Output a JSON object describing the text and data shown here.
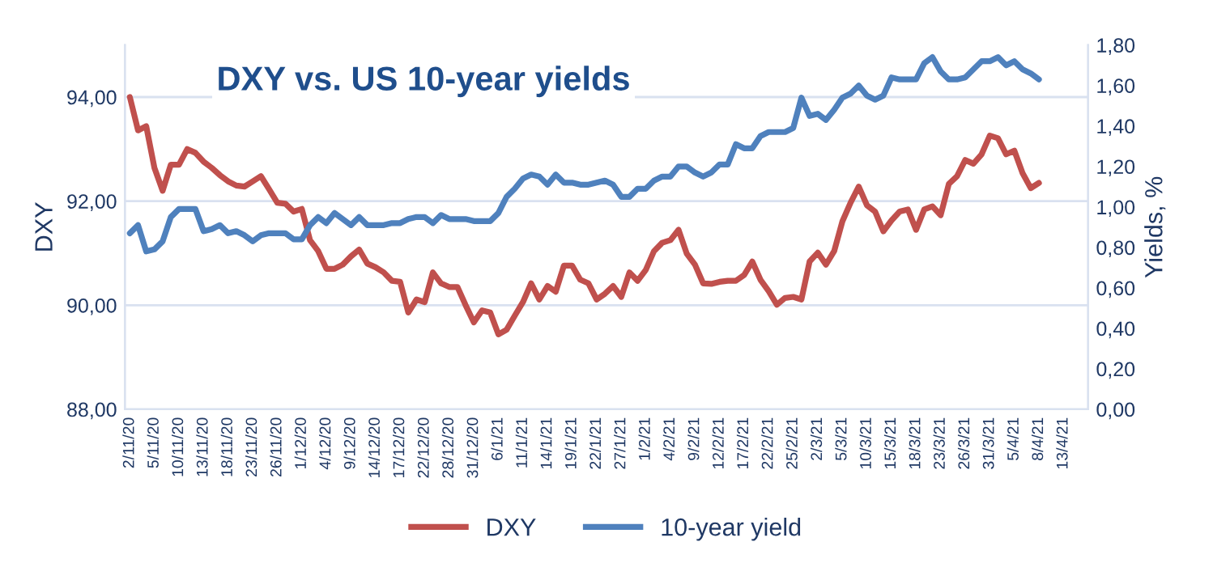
{
  "chart_data": {
    "type": "line",
    "title": "DXY vs. US 10-year yields",
    "ylabel": "DXY",
    "y2label": "Yields, %",
    "categories": [
      "2/11/20",
      null,
      null,
      "5/11/20",
      null,
      null,
      "10/11/20",
      null,
      null,
      "13/11/20",
      null,
      null,
      "18/11/20",
      null,
      null,
      "23/11/20",
      null,
      null,
      "26/11/20",
      null,
      null,
      "1/12/20",
      null,
      null,
      "4/12/20",
      null,
      null,
      "9/12/20",
      null,
      null,
      "14/12/20",
      null,
      null,
      "17/12/20",
      null,
      null,
      "22/12/20",
      null,
      null,
      "28/12/20",
      null,
      null,
      "31/12/20",
      null,
      null,
      "6/1/21",
      null,
      null,
      "11/1/21",
      null,
      null,
      "14/1/21",
      null,
      null,
      "19/1/21",
      null,
      null,
      "22/1/21",
      null,
      null,
      "27/1/21",
      null,
      null,
      "1/2/21",
      null,
      null,
      "4/2/21",
      null,
      null,
      "9/2/21",
      null,
      null,
      "12/2/21",
      null,
      null,
      "17/2/21",
      null,
      null,
      "22/2/21",
      null,
      null,
      "25/2/21",
      null,
      null,
      "2/3/21",
      null,
      null,
      "5/3/21",
      null,
      null,
      "10/3/21",
      null,
      null,
      "15/3/21",
      null,
      null,
      "18/3/21",
      null,
      null,
      "23/3/21",
      null,
      null,
      "26/3/21",
      null,
      null,
      "31/3/21",
      null,
      null,
      "5/4/21",
      null,
      null,
      "8/4/21",
      null,
      null,
      "13/4/21"
    ],
    "series": [
      {
        "name": "DXY",
        "color": "#c0504d",
        "values": [
          94.0,
          93.36,
          93.44,
          92.64,
          92.2,
          92.7,
          92.7,
          93.0,
          92.93,
          92.76,
          92.64,
          92.5,
          92.38,
          92.3,
          92.28,
          92.38,
          92.48,
          92.23,
          91.97,
          91.95,
          91.8,
          91.85,
          91.25,
          91.04,
          90.7,
          90.7,
          90.78,
          90.94,
          91.07,
          90.8,
          90.73,
          90.63,
          90.47,
          90.45,
          89.86,
          90.11,
          90.06,
          90.63,
          90.42,
          90.35,
          90.35,
          90.0,
          89.67,
          89.9,
          89.86,
          89.44,
          89.53,
          89.8,
          90.06,
          90.42,
          90.11,
          90.37,
          90.26,
          90.76,
          90.76,
          90.49,
          90.42,
          90.11,
          90.22,
          90.37,
          90.16,
          90.63,
          90.47,
          90.68,
          91.04,
          91.2,
          91.25,
          91.45,
          90.99,
          90.78,
          90.42,
          90.41,
          90.45,
          90.47,
          90.47,
          90.58,
          90.84,
          90.49,
          90.27,
          90.01,
          90.14,
          90.16,
          90.11,
          90.84,
          91.01,
          90.78,
          91.04,
          91.61,
          91.97,
          92.28,
          91.92,
          91.8,
          91.42,
          91.63,
          91.8,
          91.84,
          91.45,
          91.84,
          91.9,
          91.73,
          92.33,
          92.48,
          92.79,
          92.72,
          92.9,
          93.26,
          93.21,
          92.9,
          92.97,
          92.54,
          92.25,
          92.35,
          null,
          null,
          null
        ]
      },
      {
        "name": "10-year yield",
        "color": "#4f81bd",
        "axis": "y2",
        "values": [
          0.87,
          0.91,
          0.78,
          0.79,
          0.83,
          0.95,
          0.99,
          0.99,
          0.99,
          0.88,
          0.89,
          0.91,
          0.87,
          0.88,
          0.86,
          0.83,
          0.86,
          0.87,
          0.87,
          0.87,
          0.84,
          0.84,
          0.91,
          0.95,
          0.92,
          0.97,
          0.94,
          0.91,
          0.95,
          0.91,
          0.91,
          0.91,
          0.92,
          0.92,
          0.94,
          0.95,
          0.95,
          0.92,
          0.96,
          0.94,
          0.94,
          0.94,
          0.93,
          0.93,
          0.93,
          0.97,
          1.05,
          1.09,
          1.14,
          1.16,
          1.15,
          1.11,
          1.16,
          1.12,
          1.12,
          1.11,
          1.11,
          1.12,
          1.13,
          1.11,
          1.05,
          1.05,
          1.09,
          1.09,
          1.13,
          1.15,
          1.15,
          1.2,
          1.2,
          1.17,
          1.15,
          1.17,
          1.21,
          1.21,
          1.31,
          1.29,
          1.29,
          1.35,
          1.37,
          1.37,
          1.37,
          1.39,
          1.54,
          1.45,
          1.46,
          1.43,
          1.48,
          1.54,
          1.56,
          1.6,
          1.55,
          1.53,
          1.55,
          1.64,
          1.63,
          1.63,
          1.63,
          1.71,
          1.74,
          1.67,
          1.63,
          1.63,
          1.64,
          1.68,
          1.72,
          1.72,
          1.74,
          1.7,
          1.72,
          1.68,
          1.66,
          1.63,
          null,
          null,
          null
        ]
      }
    ],
    "ylim": [
      88,
      95
    ],
    "yticks": [
      {
        "value": 88,
        "label": "88,00"
      },
      {
        "value": 90,
        "label": "90,00"
      },
      {
        "value": 92,
        "label": "92,00"
      },
      {
        "value": 94,
        "label": "94,00"
      }
    ],
    "y2lim": [
      0,
      1.8
    ],
    "y2ticks": [
      {
        "value": 0,
        "label": "0,00"
      },
      {
        "value": 0.2,
        "label": "0,20"
      },
      {
        "value": 0.4,
        "label": "0,40"
      },
      {
        "value": 0.6,
        "label": "0,60"
      },
      {
        "value": 0.8,
        "label": "0,80"
      },
      {
        "value": 1.0,
        "label": "1,00"
      },
      {
        "value": 1.2,
        "label": "1,20"
      },
      {
        "value": 1.4,
        "label": "1,40"
      },
      {
        "value": 1.6,
        "label": "1,60"
      },
      {
        "value": 1.8,
        "label": "1,80"
      }
    ],
    "grid": "y",
    "legend": "bottom",
    "marker": "none",
    "line_style": "solid"
  }
}
